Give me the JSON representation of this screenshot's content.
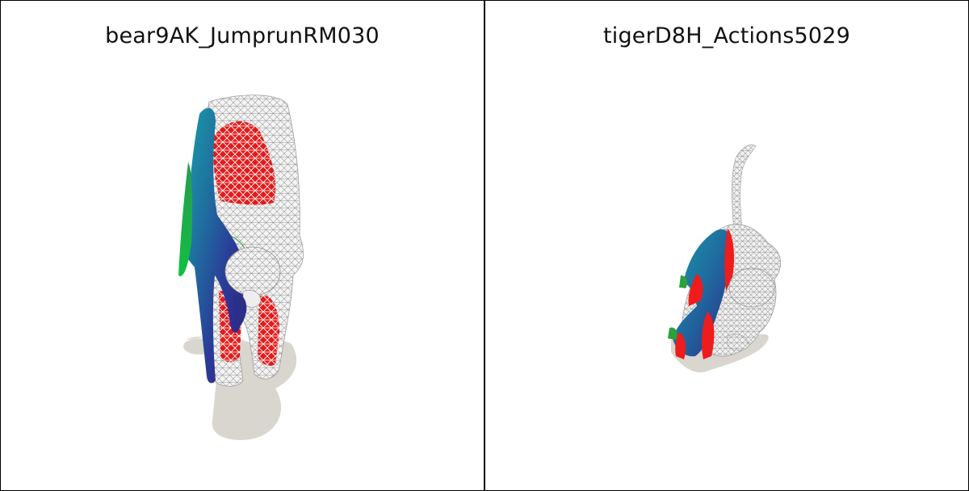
{
  "panels": [
    {
      "title": "bear9AK_JumprunRM030"
    },
    {
      "title": "tigerD8H_Actions5029"
    }
  ],
  "colors": {
    "background": "#ffffff",
    "border": "#000000",
    "shadow": "#d8d6cf",
    "wireframe": "#b5b5b5",
    "segment_red": "#ee1c1c",
    "surface_blue": "#2a3d9a",
    "surface_teal": "#1e8a9c",
    "surface_green": "#2aa13a"
  }
}
